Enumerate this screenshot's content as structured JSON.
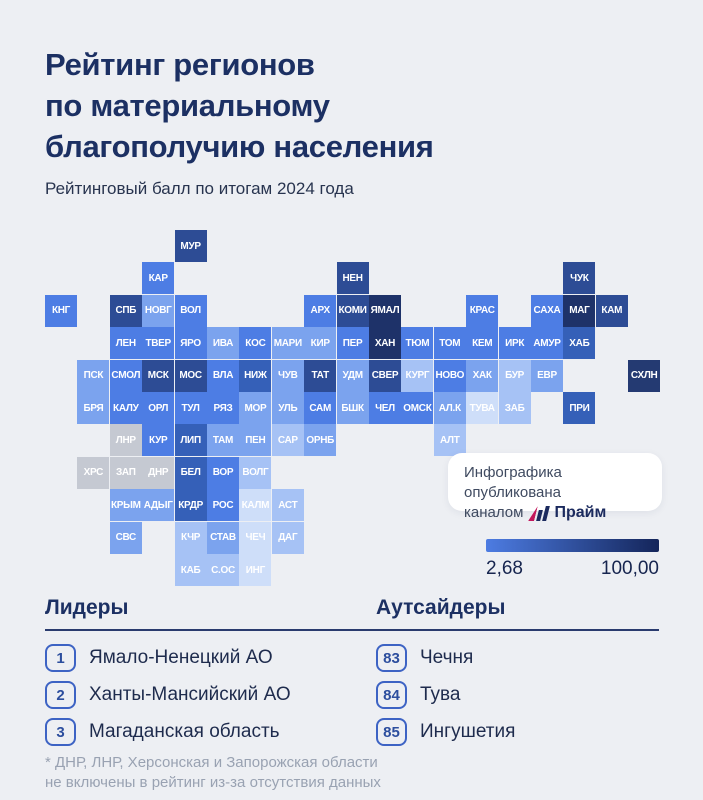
{
  "page": {
    "background": "#edeff3"
  },
  "header": {
    "title_line1": "Рейтинг регионов",
    "title_line2": "по материальному",
    "title_line3": "благополучию населения",
    "subtitle": "Рейтинговый балл по итогам 2024 года"
  },
  "publisher_badge": {
    "line1": "Инфографика опубликована",
    "line2_prefix": "каналом",
    "brand": "Прайм",
    "brand_color": "#1b2a5e",
    "logo_accent_color": "#c2175b"
  },
  "legend": {
    "min_label": "2,68",
    "max_label": "100,00",
    "gradient_start": "#4d7ce2",
    "gradient_end": "#14255a"
  },
  "leaders": {
    "heading": "Лидеры",
    "items": [
      {
        "rank": "1",
        "name": "Ямало-Ненецкий АО"
      },
      {
        "rank": "2",
        "name": "Ханты-Мансийский АО"
      },
      {
        "rank": "3",
        "name": "Магаданская область"
      }
    ]
  },
  "outsiders": {
    "heading": "Аутсайдеры",
    "items": [
      {
        "rank": "83",
        "name": "Чечня"
      },
      {
        "rank": "84",
        "name": "Тува"
      },
      {
        "rank": "85",
        "name": "Ингушетия"
      }
    ]
  },
  "footnote": {
    "line1": "* ДНР, ЛНР, Херсонская и Запорожская области",
    "line2": "не включены в рейтинг из-за отсутствия данных"
  },
  "chart_data": {
    "type": "heatmap",
    "title": "Рейтинг регионов по материальному благополучию населения",
    "subtitle": "Рейтинговый балл по итогам 2024 года",
    "scale": {
      "min": 2.68,
      "max": 100.0
    },
    "legend_position": "bottom-right",
    "palette": {
      "p1": "#1e3269",
      "p2": "#2d4c95",
      "p2d": "#243a72",
      "p3": "#3560b8",
      "p4": "#4d7de4",
      "p5": "#7ba3ee",
      "p6": "#a6c2f5",
      "p7": "#cedef9",
      "excluded": "#c5c9d2"
    },
    "tiles": [
      {
        "code": "МУР",
        "col": 4,
        "row": 0,
        "shade": "p2"
      },
      {
        "code": "КАР",
        "col": 3,
        "row": 1,
        "shade": "p4"
      },
      {
        "code": "НЕН",
        "col": 9,
        "row": 1,
        "shade": "p2"
      },
      {
        "code": "ЧУК",
        "col": 16,
        "row": 1,
        "shade": "p2"
      },
      {
        "code": "КНГ",
        "col": 0,
        "row": 2,
        "shade": "p4"
      },
      {
        "code": "СПБ",
        "col": 2,
        "row": 2,
        "shade": "p2"
      },
      {
        "code": "НОВГ",
        "col": 3,
        "row": 2,
        "shade": "p5"
      },
      {
        "code": "ВОЛ",
        "col": 4,
        "row": 2,
        "shade": "p4"
      },
      {
        "code": "АРХ",
        "col": 8,
        "row": 2,
        "shade": "p4"
      },
      {
        "code": "КОМИ",
        "col": 9,
        "row": 2,
        "shade": "p2"
      },
      {
        "code": "ЯМАЛ",
        "col": 10,
        "row": 2,
        "shade": "p1"
      },
      {
        "code": "КРАС",
        "col": 13,
        "row": 2,
        "shade": "p4"
      },
      {
        "code": "САХА",
        "col": 15,
        "row": 2,
        "shade": "p4"
      },
      {
        "code": "МАГ",
        "col": 16,
        "row": 2,
        "shade": "p1"
      },
      {
        "code": "КАМ",
        "col": 17,
        "row": 2,
        "shade": "p2"
      },
      {
        "code": "ЛЕН",
        "col": 2,
        "row": 3,
        "shade": "p4"
      },
      {
        "code": "ТВЕР",
        "col": 3,
        "row": 3,
        "shade": "p4"
      },
      {
        "code": "ЯРО",
        "col": 4,
        "row": 3,
        "shade": "p4"
      },
      {
        "code": "ИВА",
        "col": 5,
        "row": 3,
        "shade": "p5"
      },
      {
        "code": "КОС",
        "col": 6,
        "row": 3,
        "shade": "p4"
      },
      {
        "code": "МАРИ",
        "col": 7,
        "row": 3,
        "shade": "p5"
      },
      {
        "code": "КИР",
        "col": 8,
        "row": 3,
        "shade": "p5"
      },
      {
        "code": "ПЕР",
        "col": 9,
        "row": 3,
        "shade": "p4"
      },
      {
        "code": "ХАН",
        "col": 10,
        "row": 3,
        "shade": "p1"
      },
      {
        "code": "ТЮМ",
        "col": 11,
        "row": 3,
        "shade": "p4"
      },
      {
        "code": "ТОМ",
        "col": 12,
        "row": 3,
        "shade": "p4"
      },
      {
        "code": "КЕМ",
        "col": 13,
        "row": 3,
        "shade": "p4"
      },
      {
        "code": "ИРК",
        "col": 14,
        "row": 3,
        "shade": "p4"
      },
      {
        "code": "АМУР",
        "col": 15,
        "row": 3,
        "shade": "p4"
      },
      {
        "code": "ХАБ",
        "col": 16,
        "row": 3,
        "shade": "p3"
      },
      {
        "code": "ПСК",
        "col": 1,
        "row": 4,
        "shade": "p5"
      },
      {
        "code": "СМОЛ",
        "col": 2,
        "row": 4,
        "shade": "p4"
      },
      {
        "code": "МСК",
        "col": 3,
        "row": 4,
        "shade": "p2"
      },
      {
        "code": "МОС",
        "col": 4,
        "row": 4,
        "shade": "p2"
      },
      {
        "code": "ВЛА",
        "col": 5,
        "row": 4,
        "shade": "p4"
      },
      {
        "code": "НИЖ",
        "col": 6,
        "row": 4,
        "shade": "p3"
      },
      {
        "code": "ЧУВ",
        "col": 7,
        "row": 4,
        "shade": "p5"
      },
      {
        "code": "ТАТ",
        "col": 8,
        "row": 4,
        "shade": "p2"
      },
      {
        "code": "УДМ",
        "col": 9,
        "row": 4,
        "shade": "p5"
      },
      {
        "code": "СВЕР",
        "col": 10,
        "row": 4,
        "shade": "p2"
      },
      {
        "code": "КУРГ",
        "col": 11,
        "row": 4,
        "shade": "p6"
      },
      {
        "code": "НОВО",
        "col": 12,
        "row": 4,
        "shade": "p4"
      },
      {
        "code": "ХАК",
        "col": 13,
        "row": 4,
        "shade": "p5"
      },
      {
        "code": "БУР",
        "col": 14,
        "row": 4,
        "shade": "p6"
      },
      {
        "code": "ЕВР",
        "col": 15,
        "row": 4,
        "shade": "p5"
      },
      {
        "code": "СХЛН",
        "col": 18,
        "row": 4,
        "shade": "p2d"
      },
      {
        "code": "БРЯ",
        "col": 1,
        "row": 5,
        "shade": "p5"
      },
      {
        "code": "КАЛУ",
        "col": 2,
        "row": 5,
        "shade": "p4"
      },
      {
        "code": "ОРЛ",
        "col": 3,
        "row": 5,
        "shade": "p4"
      },
      {
        "code": "ТУЛ",
        "col": 4,
        "row": 5,
        "shade": "p4"
      },
      {
        "code": "РЯЗ",
        "col": 5,
        "row": 5,
        "shade": "p4"
      },
      {
        "code": "МОР",
        "col": 6,
        "row": 5,
        "shade": "p5"
      },
      {
        "code": "УЛЬ",
        "col": 7,
        "row": 5,
        "shade": "p5"
      },
      {
        "code": "САМ",
        "col": 8,
        "row": 5,
        "shade": "p4"
      },
      {
        "code": "БШК",
        "col": 9,
        "row": 5,
        "shade": "p5"
      },
      {
        "code": "ЧЕЛ",
        "col": 10,
        "row": 5,
        "shade": "p4"
      },
      {
        "code": "ОМСК",
        "col": 11,
        "row": 5,
        "shade": "p4"
      },
      {
        "code": "АЛ.К",
        "col": 12,
        "row": 5,
        "shade": "p5"
      },
      {
        "code": "ТУВА",
        "col": 13,
        "row": 5,
        "shade": "p7"
      },
      {
        "code": "ЗАБ",
        "col": 14,
        "row": 5,
        "shade": "p6"
      },
      {
        "code": "ПРИ",
        "col": 16,
        "row": 5,
        "shade": "p3"
      },
      {
        "code": "ЛНР",
        "col": 2,
        "row": 6,
        "shade": "excluded"
      },
      {
        "code": "КУР",
        "col": 3,
        "row": 6,
        "shade": "p4"
      },
      {
        "code": "ЛИП",
        "col": 4,
        "row": 6,
        "shade": "p3"
      },
      {
        "code": "ТАМ",
        "col": 5,
        "row": 6,
        "shade": "p5"
      },
      {
        "code": "ПЕН",
        "col": 6,
        "row": 6,
        "shade": "p5"
      },
      {
        "code": "САР",
        "col": 7,
        "row": 6,
        "shade": "p6"
      },
      {
        "code": "ОРНБ",
        "col": 8,
        "row": 6,
        "shade": "p5"
      },
      {
        "code": "АЛТ",
        "col": 12,
        "row": 6,
        "shade": "p6"
      },
      {
        "code": "ХРС",
        "col": 1,
        "row": 7,
        "shade": "excluded"
      },
      {
        "code": "ЗАП",
        "col": 2,
        "row": 7,
        "shade": "excluded"
      },
      {
        "code": "ДНР",
        "col": 3,
        "row": 7,
        "shade": "excluded"
      },
      {
        "code": "БЕЛ",
        "col": 4,
        "row": 7,
        "shade": "p3"
      },
      {
        "code": "ВОР",
        "col": 5,
        "row": 7,
        "shade": "p4"
      },
      {
        "code": "ВОЛГ",
        "col": 6,
        "row": 7,
        "shade": "p6"
      },
      {
        "code": "КРЫМ",
        "col": 2,
        "row": 8,
        "shade": "p5"
      },
      {
        "code": "АДЫГ",
        "col": 3,
        "row": 8,
        "shade": "p5"
      },
      {
        "code": "КРДР",
        "col": 4,
        "row": 8,
        "shade": "p3"
      },
      {
        "code": "РОС",
        "col": 5,
        "row": 8,
        "shade": "p4"
      },
      {
        "code": "КАЛМ",
        "col": 6,
        "row": 8,
        "shade": "p7"
      },
      {
        "code": "АСТ",
        "col": 7,
        "row": 8,
        "shade": "p6"
      },
      {
        "code": "СВС",
        "col": 2,
        "row": 9,
        "shade": "p5"
      },
      {
        "code": "КЧР",
        "col": 4,
        "row": 9,
        "shade": "p6"
      },
      {
        "code": "СТАВ",
        "col": 5,
        "row": 9,
        "shade": "p5"
      },
      {
        "code": "ЧЕЧ",
        "col": 6,
        "row": 9,
        "shade": "p7"
      },
      {
        "code": "ДАГ",
        "col": 7,
        "row": 9,
        "shade": "p6"
      },
      {
        "code": "КАБ",
        "col": 4,
        "row": 10,
        "shade": "p6"
      },
      {
        "code": "С.ОС",
        "col": 5,
        "row": 10,
        "shade": "p6"
      },
      {
        "code": "ИНГ",
        "col": 6,
        "row": 10,
        "shade": "p7"
      }
    ]
  }
}
